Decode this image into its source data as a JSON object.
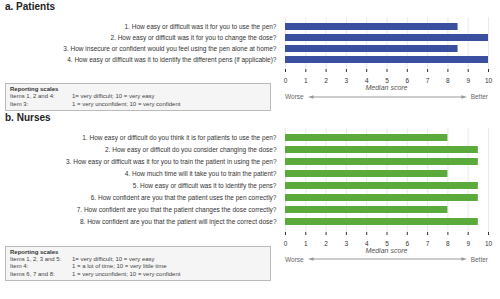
{
  "chart_data": [
    {
      "type": "bar",
      "orientation": "horizontal",
      "title": "a. Patients",
      "categories": [
        "1. How easy or difficult was it for you to use the pen?",
        "2. How easy or difficult was it for you to change the dose?",
        "3. How insecure or confident would you feel using the pen alone at home?",
        "4. How easy or difficult was it to identify the different pens (if applicable)?"
      ],
      "values": [
        8.5,
        10,
        8.5,
        10
      ],
      "color": "#3B4FA0",
      "xlim": [
        0,
        10
      ],
      "xticks": [
        0,
        1,
        2,
        3,
        4,
        5,
        6,
        7,
        8,
        9,
        10
      ],
      "grid": true,
      "xlabel": "Median score",
      "annotations": [
        "Worse",
        "Better"
      ],
      "caption": {
        "title": "Reporting scales",
        "rows": [
          [
            "Items 1, 2 and 4:",
            "1= very difficult; 10 = very easy"
          ],
          [
            "Item 3:",
            "1 = very unconfident; 10 = very confident"
          ]
        ]
      }
    },
    {
      "type": "bar",
      "orientation": "horizontal",
      "title": "b. Nurses",
      "categories": [
        "1. How easy or difficult do you think it is for patients to use the pen?",
        "2. How easy or difficult do you consider changing the dose?",
        "3. How easy or difficult was it for you to train the patient in using the pen?",
        "4. How much time will it take you to train the patient?",
        "5. How easy or difficult was it to identify the pens?",
        "6. How confident are you that the patient uses the pen correctly?",
        "7. How confident are you that the patient changes the dose correctly?",
        "8. How confident are you that the patient will inject the correct dose?"
      ],
      "values": [
        8.0,
        9.5,
        9.5,
        8.0,
        9.5,
        9.5,
        8.0,
        9.5
      ],
      "color": "#5aaa3c",
      "xlim": [
        0,
        10
      ],
      "xticks": [
        0,
        1,
        2,
        3,
        4,
        5,
        6,
        7,
        8,
        9,
        10
      ],
      "grid": true,
      "xlabel": "Median score",
      "annotations": [
        "Worse",
        "Better"
      ],
      "caption": {
        "title": "Reporting scales",
        "rows": [
          [
            "Items 1, 2, 3 and 5:",
            "1= very difficult; 10 = very easy"
          ],
          [
            "Item 4:",
            "1 = a lot of time; 10 = very little time"
          ],
          [
            "Items 6, 7 and 8:",
            "1 = very unconfident; 10 = very confident"
          ]
        ]
      }
    }
  ]
}
